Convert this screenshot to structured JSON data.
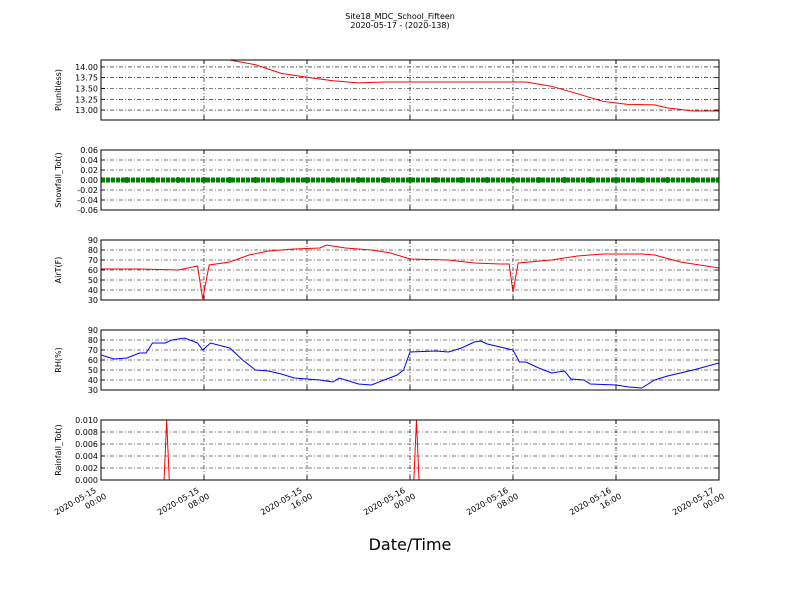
{
  "title": "Site18_MDC_School_Fifteen",
  "subtitle": "2020-05-17 - (2020-138)",
  "xlabel": "Date/Time",
  "chart_data": [
    {
      "type": "line",
      "ylabel": "P(unitless)",
      "color": "#ff0000",
      "grid": true,
      "xlim": [
        "2020-05-15 00:00",
        "2020-05-17 00:00"
      ],
      "xticks": [
        "2020-05-15 00:00",
        "2020-05-15 08:00",
        "2020-05-15 16:00",
        "2020-05-16 00:00",
        "2020-05-16 08:00",
        "2020-05-16 16:00",
        "2020-05-17 00:00"
      ],
      "ylim": [
        12.77,
        14.16
      ],
      "yticks": [
        {
          "value": 13,
          "label": "13.00"
        },
        {
          "value": 13.25,
          "label": "13.25"
        },
        {
          "value": 13.5,
          "label": "13.50"
        },
        {
          "value": 13.75,
          "label": "13.75"
        },
        {
          "value": 14,
          "label": "14.00"
        }
      ],
      "x": [
        "2020-05-15 00:00",
        "2020-05-15 10:00",
        "2020-05-15 12:00",
        "2020-05-15 14:00",
        "2020-05-15 16:00",
        "2020-05-15 18:00",
        "2020-05-15 20:00",
        "2020-05-15 22:00",
        "2020-05-16 09:00",
        "2020-05-16 11:00",
        "2020-05-16 13:00",
        "2020-05-16 15:00",
        "2020-05-16 17:00",
        "2020-05-16 19:00",
        "2020-05-16 20:00",
        "2020-05-16 22:00",
        "2020-05-17 00:00"
      ],
      "values": [
        14.16,
        14.16,
        14.05,
        13.85,
        13.76,
        13.68,
        13.63,
        13.65,
        13.65,
        13.55,
        13.38,
        13.2,
        13.13,
        13.12,
        13.05,
        12.98,
        12.98
      ]
    },
    {
      "type": "scatter",
      "ylabel": "Snowfall_Tot()",
      "color": "#008000",
      "grid": true,
      "xlim": [
        "2020-05-15 00:00",
        "2020-05-17 00:00"
      ],
      "xticks": [
        "2020-05-15 00:00",
        "2020-05-15 08:00",
        "2020-05-15 16:00",
        "2020-05-16 00:00",
        "2020-05-16 08:00",
        "2020-05-16 16:00",
        "2020-05-17 00:00"
      ],
      "ylim": [
        -0.06,
        0.06
      ],
      "yticks": [
        {
          "value": -0.06,
          "label": "-0.06"
        },
        {
          "value": -0.04,
          "label": "-0.04"
        },
        {
          "value": -0.02,
          "label": "-0.02"
        },
        {
          "value": 0,
          "label": "0.00"
        },
        {
          "value": 0.02,
          "label": "0.02"
        },
        {
          "value": 0.04,
          "label": "0.04"
        },
        {
          "value": 0.06,
          "label": "0.06"
        }
      ],
      "x": [
        "2020-05-15 00:00",
        "2020-05-15 02:00",
        "2020-05-15 04:00",
        "2020-05-15 06:00",
        "2020-05-15 08:00",
        "2020-05-15 10:00",
        "2020-05-15 12:00",
        "2020-05-15 14:00",
        "2020-05-15 16:00",
        "2020-05-15 18:00",
        "2020-05-15 20:00",
        "2020-05-15 22:00",
        "2020-05-16 00:00",
        "2020-05-16 02:00",
        "2020-05-16 04:00",
        "2020-05-16 06:00",
        "2020-05-16 08:00",
        "2020-05-16 10:00",
        "2020-05-16 12:00",
        "2020-05-16 14:00",
        "2020-05-16 16:00",
        "2020-05-16 18:00",
        "2020-05-16 20:00",
        "2020-05-16 22:00",
        "2020-05-17 00:00"
      ],
      "values": [
        0,
        0,
        0,
        0,
        0,
        0,
        0,
        0,
        0,
        0,
        0,
        0,
        0,
        0,
        0,
        0,
        0,
        0,
        0,
        0,
        0,
        0,
        0,
        0,
        0
      ]
    },
    {
      "type": "line",
      "ylabel": "AirT(F)",
      "color": "#ff0000",
      "grid": true,
      "xlim": [
        "2020-05-15 00:00",
        "2020-05-17 00:00"
      ],
      "xticks": [
        "2020-05-15 00:00",
        "2020-05-15 08:00",
        "2020-05-15 16:00",
        "2020-05-16 00:00",
        "2020-05-16 08:00",
        "2020-05-16 16:00",
        "2020-05-17 00:00"
      ],
      "ylim": [
        30,
        90
      ],
      "yticks": [
        30,
        40,
        50,
        60,
        70,
        80,
        90
      ],
      "x": [
        "2020-05-15 00:00",
        "2020-05-15 03:00",
        "2020-05-15 06:00",
        "2020-05-15 07:30",
        "2020-05-15 07:54",
        "2020-05-15 08:24",
        "2020-05-15 10:00",
        "2020-05-15 11:30",
        "2020-05-15 13:00",
        "2020-05-15 15:00",
        "2020-05-15 17:00",
        "2020-05-15 17:30",
        "2020-05-15 19:00",
        "2020-05-15 21:00",
        "2020-05-15 22:30",
        "2020-05-16 00:00",
        "2020-05-16 03:00",
        "2020-05-16 05:00",
        "2020-05-16 07:00",
        "2020-05-16 07:42",
        "2020-05-16 08:00",
        "2020-05-16 08:24",
        "2020-05-16 11:00",
        "2020-05-16 13:00",
        "2020-05-16 15:00",
        "2020-05-16 18:00",
        "2020-05-16 19:00",
        "2020-05-16 21:00",
        "2020-05-16 22:00",
        "2020-05-17 00:00"
      ],
      "values": [
        61,
        61,
        60,
        64,
        31,
        65,
        68,
        75,
        79,
        81,
        82,
        85,
        82,
        80,
        77,
        71,
        70,
        67,
        66,
        66,
        38,
        67,
        70,
        74,
        76,
        76,
        75,
        68,
        66,
        62
      ]
    },
    {
      "type": "line",
      "ylabel": "RH(%)",
      "color": "#0000ff",
      "grid": true,
      "xlim": [
        "2020-05-15 00:00",
        "2020-05-17 00:00"
      ],
      "xticks": [
        "2020-05-15 00:00",
        "2020-05-15 08:00",
        "2020-05-15 16:00",
        "2020-05-16 00:00",
        "2020-05-16 08:00",
        "2020-05-16 16:00",
        "2020-05-17 00:00"
      ],
      "ylim": [
        30,
        90
      ],
      "yticks": [
        30,
        40,
        50,
        60,
        70,
        80,
        90
      ],
      "x": [
        "2020-05-15 00:00",
        "2020-05-15 01:00",
        "2020-05-15 02:00",
        "2020-05-15 03:00",
        "2020-05-15 03:30",
        "2020-05-15 04:00",
        "2020-05-15 05:00",
        "2020-05-15 05:30",
        "2020-05-15 06:30",
        "2020-05-15 07:30",
        "2020-05-15 07:54",
        "2020-05-15 08:30",
        "2020-05-15 10:00",
        "2020-05-15 11:00",
        "2020-05-15 12:00",
        "2020-05-15 13:00",
        "2020-05-15 14:00",
        "2020-05-15 15:00",
        "2020-05-15 17:00",
        "2020-05-15 18:00",
        "2020-05-15 18:30",
        "2020-05-15 20:00",
        "2020-05-15 21:00",
        "2020-05-15 22:00",
        "2020-05-15 23:00",
        "2020-05-15 23:30",
        "2020-05-16 00:00",
        "2020-05-16 02:00",
        "2020-05-16 03:00",
        "2020-05-16 04:00",
        "2020-05-16 05:00",
        "2020-05-16 05:30",
        "2020-05-16 06:00",
        "2020-05-16 07:00",
        "2020-05-16 08:00",
        "2020-05-16 08:30",
        "2020-05-16 09:00",
        "2020-05-16 10:00",
        "2020-05-16 11:00",
        "2020-05-16 12:00",
        "2020-05-16 12:30",
        "2020-05-16 13:30",
        "2020-05-16 14:00",
        "2020-05-16 16:00",
        "2020-05-16 17:00",
        "2020-05-16 18:00",
        "2020-05-16 19:00",
        "2020-05-16 20:00",
        "2020-05-16 21:00",
        "2020-05-16 22:00",
        "2020-05-17 00:00"
      ],
      "values": [
        65,
        61,
        62,
        67,
        67,
        77,
        77,
        80,
        82,
        77,
        70,
        77,
        72,
        60,
        50,
        49,
        46,
        42,
        40,
        38,
        42,
        36,
        35,
        40,
        45,
        50,
        68,
        69,
        68,
        72,
        78,
        79,
        76,
        73,
        70,
        58,
        58,
        52,
        47,
        49,
        41,
        40,
        36,
        35,
        33,
        32,
        40,
        44,
        47,
        50,
        57
      ]
    },
    {
      "type": "line",
      "ylabel": "Rainfall_Tot()",
      "color": "#ff0000",
      "grid": true,
      "xlim": [
        "2020-05-15 00:00",
        "2020-05-17 00:00"
      ],
      "xticks": [
        "2020-05-15 00:00",
        "2020-05-15 08:00",
        "2020-05-15 16:00",
        "2020-05-16 00:00",
        "2020-05-16 08:00",
        "2020-05-16 16:00",
        "2020-05-17 00:00"
      ],
      "ylim": [
        0,
        0.01
      ],
      "yticks": [
        {
          "value": 0,
          "label": "0.000"
        },
        {
          "value": 0.002,
          "label": "0.002"
        },
        {
          "value": 0.004,
          "label": "0.004"
        },
        {
          "value": 0.006,
          "label": "0.006"
        },
        {
          "value": 0.008,
          "label": "0.008"
        },
        {
          "value": 0.01,
          "label": "0.010"
        }
      ],
      "x": [
        "2020-05-15 00:00",
        "2020-05-15 04:54",
        "2020-05-15 05:06",
        "2020-05-15 05:18",
        "2020-05-16 00:18",
        "2020-05-16 00:30",
        "2020-05-16 00:42",
        "2020-05-17 00:00"
      ],
      "values": [
        0,
        0,
        0.01,
        0,
        0,
        0.01,
        0,
        0
      ]
    }
  ]
}
